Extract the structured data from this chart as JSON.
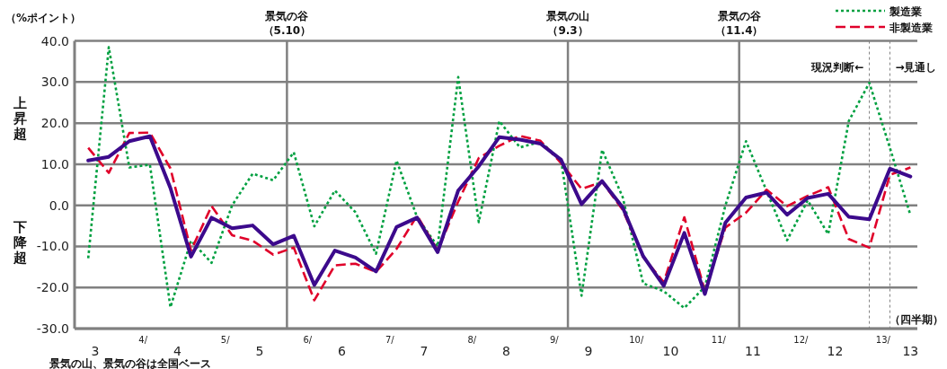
{
  "chart_data": {
    "type": "line",
    "ylabel": "（%ポイント）",
    "xlabel": "（四半期）",
    "annotations": [
      "上昇超",
      "下降超",
      "景気の山、景気の谷は全国ベース"
    ],
    "x": [
      3.333,
      3.583,
      3.833,
      4.083,
      4.333,
      4.583,
      4.833,
      5.083,
      5.333,
      5.583,
      5.833,
      6.083,
      6.333,
      6.583,
      6.833,
      7.083,
      7.333,
      7.583,
      7.833,
      8.083,
      8.333,
      8.583,
      8.833,
      9.083,
      9.333,
      9.583,
      9.833,
      10.083,
      10.333,
      10.583,
      10.833,
      11.083,
      11.333,
      11.583,
      11.833,
      12.083,
      12.333,
      12.583,
      12.833,
      13.083,
      13.333
    ],
    "series": [
      {
        "name": "製造業",
        "color": "#00a040",
        "line_style": "dotted",
        "values": [
          -12.9,
          38.5,
          9.2,
          9.9,
          -24.8,
          -8.6,
          -14.0,
          0.0,
          7.7,
          6.1,
          12.9,
          -5.1,
          3.6,
          -1.7,
          -11.8,
          10.9,
          -2.9,
          -10.0,
          31.2,
          -4.1,
          20.5,
          14.1,
          15.4,
          11.1,
          -22.0,
          13.5,
          2.0,
          -19.0,
          -20.9,
          -25.0,
          -19.8,
          0.0,
          15.6,
          3.5,
          -8.5,
          1.2,
          -7.0,
          20.5,
          29.8,
          14.0,
          -2.4
        ]
      },
      {
        "name": "非製造業",
        "color": "#e0002a",
        "line_style": "dashed",
        "values": [
          14.0,
          7.9,
          17.6,
          17.7,
          9.0,
          -11.0,
          -0.2,
          -7.3,
          -8.6,
          -12.0,
          -10.3,
          -23.1,
          -14.6,
          -14.2,
          -16.2,
          -10.6,
          -2.5,
          -11.0,
          0.9,
          11.5,
          14.5,
          16.9,
          15.7,
          10.3,
          4.0,
          5.7,
          -1.1,
          -12.6,
          -18.7,
          -2.9,
          -20.9,
          -5.4,
          -1.8,
          3.8,
          -0.2,
          2.3,
          4.4,
          -8.2,
          -10.3,
          7.4,
          9.2
        ]
      },
      {
        "color": "#3c0a8c",
        "line_style": "solid",
        "values": [
          10.9,
          11.8,
          15.6,
          16.8,
          4.2,
          -12.5,
          -3.0,
          -5.6,
          -4.9,
          -9.5,
          -7.4,
          -19.4,
          -11.0,
          -12.7,
          -16.1,
          -5.3,
          -3.0,
          -11.4,
          3.6,
          9.5,
          16.6,
          16.0,
          15.0,
          11.1,
          0.3,
          5.9,
          -0.5,
          -12.4,
          -19.6,
          -6.7,
          -21.6,
          -4.2,
          1.9,
          3.1,
          -2.3,
          1.8,
          2.8,
          -2.8,
          -3.4,
          8.9,
          7.0
        ]
      }
    ],
    "xlim": [
      3.167,
      13.417
    ],
    "xticks": [
      {
        "value": 3.417,
        "label": "3"
      },
      {
        "value": 4.417,
        "label": "4"
      },
      {
        "value": 5.417,
        "label": "5"
      },
      {
        "value": 6.417,
        "label": "6"
      },
      {
        "value": 7.417,
        "label": "7"
      },
      {
        "value": 8.417,
        "label": "8"
      },
      {
        "value": 9.417,
        "label": "9"
      },
      {
        "value": 10.417,
        "label": "10"
      },
      {
        "value": 11.417,
        "label": "11"
      },
      {
        "value": 12.417,
        "label": "12"
      },
      {
        "value": 13.333,
        "label": "13"
      }
    ],
    "x2lim": [
      3.167,
      13.417
    ],
    "x2ticks": [
      {
        "value": 4,
        "label": "4/"
      },
      {
        "value": 5,
        "label": "5/"
      },
      {
        "value": 6,
        "label": "6/"
      },
      {
        "value": 7,
        "label": "7/"
      },
      {
        "value": 8,
        "label": "8/"
      },
      {
        "value": 9,
        "label": "9/"
      },
      {
        "value": 10,
        "label": "10/"
      },
      {
        "value": 11,
        "label": "11/"
      },
      {
        "value": 12,
        "label": "12/"
      },
      {
        "value": 13,
        "label": "13/"
      }
    ],
    "ylim": [
      -30,
      40
    ],
    "yticks": [
      {
        "value": -30,
        "label": "-30.0"
      },
      {
        "value": -20,
        "label": "-20.0"
      },
      {
        "value": -10,
        "label": "-10.0"
      },
      {
        "value": 0,
        "label": "0.0"
      },
      {
        "value": 10,
        "label": "10.0"
      },
      {
        "value": 20,
        "label": "20.0"
      },
      {
        "value": 30,
        "label": "30.0"
      },
      {
        "value": 40,
        "label": "40.0"
      }
    ],
    "ref_lines": [
      {
        "axis": "x",
        "value": 5.75,
        "label": "景気の谷（5.10）",
        "color": "#808080"
      },
      {
        "axis": "x",
        "value": 9.167,
        "label": "景気の山（9.3）",
        "color": "#808080"
      },
      {
        "axis": "x",
        "value": 11.25,
        "label": "景気の谷（11.4）",
        "color": "#808080"
      },
      {
        "axis": "x",
        "value": 12.833,
        "label": "現況判断←",
        "color": "#808080",
        "line_style": "dashed"
      },
      {
        "axis": "x",
        "value": 13.083,
        "label": "→見通し",
        "color": "#808080",
        "line_style": "dashed"
      }
    ],
    "grid": "y",
    "legend": "top right"
  }
}
